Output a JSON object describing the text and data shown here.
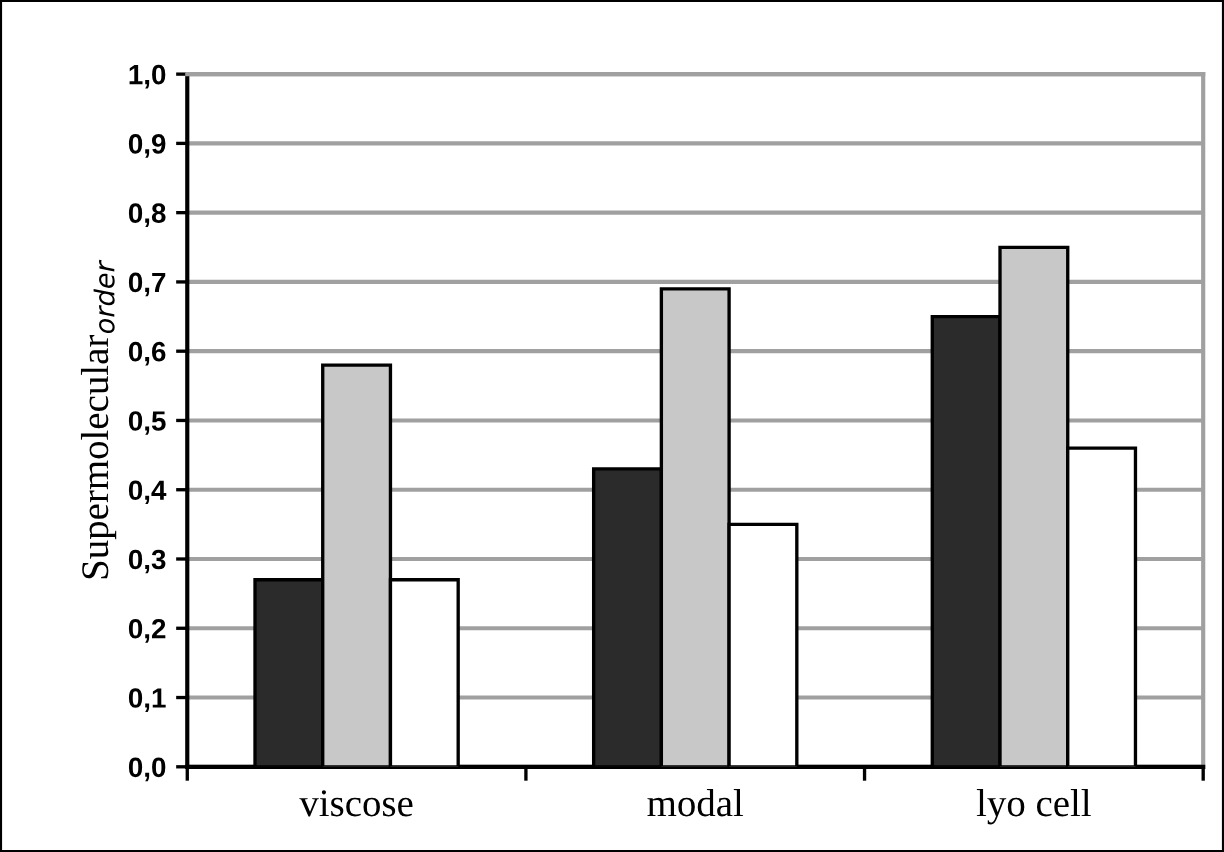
{
  "chart_data": {
    "type": "bar",
    "ylabel": "Supermolecular$_{order}$",
    "categories": [
      "viscose",
      "modal",
      "lyo cell"
    ],
    "series": [
      {
        "color": "#2b2b2b",
        "values": [
          0.27,
          0.43,
          0.65
        ]
      },
      {
        "color": "#c8c8c8",
        "values": [
          0.58,
          0.69,
          0.75
        ]
      },
      {
        "color": "#ffffff",
        "values": [
          0.27,
          0.35,
          0.46
        ]
      }
    ],
    "ylim": [
      0,
      1.0
    ],
    "yticks": [
      {
        "value": 0,
        "label": "0,0"
      },
      {
        "value": 0.1,
        "label": "0,1"
      },
      {
        "value": 0.2,
        "label": "0,2"
      },
      {
        "value": 0.3,
        "label": "0,3"
      },
      {
        "value": 0.4,
        "label": "0,4"
      },
      {
        "value": 0.5,
        "label": "0,5"
      },
      {
        "value": 0.6,
        "label": "0,6"
      },
      {
        "value": 0.7,
        "label": "0,7"
      },
      {
        "value": 0.8,
        "label": "0,8"
      },
      {
        "value": 0.9,
        "label": "0,9"
      },
      {
        "value": 1.0,
        "label": "1,0"
      }
    ],
    "grid": "y"
  }
}
